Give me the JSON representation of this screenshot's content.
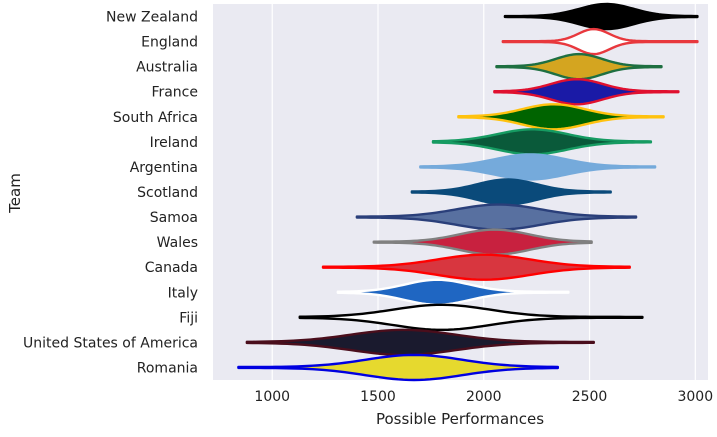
{
  "chart_data": {
    "type": "violin",
    "orientation": "horizontal",
    "xlabel": "Possible Performances",
    "ylabel": "Team",
    "xlim": [
      720,
      3060
    ],
    "xticks": [
      1000,
      1500,
      2000,
      2500,
      3000
    ],
    "grid": true,
    "background": "#eaeaf2",
    "teams": [
      {
        "name": "New Zealand",
        "fill": "#000000",
        "edge": "#000000",
        "min": 2100,
        "max": 3010,
        "median": 2580,
        "spread": 0.28
      },
      {
        "name": "England",
        "fill": "#ffffff",
        "edge": "#e8383d",
        "min": 2090,
        "max": 3010,
        "median": 2520,
        "spread": 0.16
      },
      {
        "name": "Australia",
        "fill": "#d4a520",
        "edge": "#1e6f41",
        "min": 2060,
        "max": 2840,
        "median": 2450,
        "spread": 0.28
      },
      {
        "name": "France",
        "fill": "#1a1aa6",
        "edge": "#e0102f",
        "min": 2050,
        "max": 2920,
        "median": 2440,
        "spread": 0.28
      },
      {
        "name": "South Africa",
        "fill": "#006400",
        "edge": "#ffc20e",
        "min": 1880,
        "max": 2850,
        "median": 2330,
        "spread": 0.3
      },
      {
        "name": "Ireland",
        "fill": "#0a5a3a",
        "edge": "#169b62",
        "min": 1760,
        "max": 2790,
        "median": 2230,
        "spread": 0.32
      },
      {
        "name": "Argentina",
        "fill": "#75aadb",
        "edge": "#75aadb",
        "min": 1700,
        "max": 2810,
        "median": 2220,
        "spread": 0.3
      },
      {
        "name": "Scotland",
        "fill": "#0a4a7a",
        "edge": "#0a4a7a",
        "min": 1660,
        "max": 2600,
        "median": 2110,
        "spread": 0.3
      },
      {
        "name": "Samoa",
        "fill": "#5870a0",
        "edge": "#2a3f7a",
        "min": 1400,
        "max": 2720,
        "median": 2070,
        "spread": 0.3
      },
      {
        "name": "Wales",
        "fill": "#c8213f",
        "edge": "#808080",
        "min": 1480,
        "max": 2510,
        "median": 2050,
        "spread": 0.32
      },
      {
        "name": "Canada",
        "fill": "#d8363f",
        "edge": "#ff0000",
        "min": 1240,
        "max": 2690,
        "median": 2000,
        "spread": 0.3
      },
      {
        "name": "Italy",
        "fill": "#1f66c2",
        "edge": "#ffffff",
        "min": 1310,
        "max": 2400,
        "median": 1780,
        "spread": 0.28
      },
      {
        "name": "Fiji",
        "fill": "#ffffff",
        "edge": "#000000",
        "min": 1130,
        "max": 2750,
        "median": 1800,
        "spread": 0.28
      },
      {
        "name": "United States of America",
        "fill": "#1a1a2e",
        "edge": "#4a0e1c",
        "min": 880,
        "max": 2520,
        "median": 1620,
        "spread": 0.3
      },
      {
        "name": "Romania",
        "fill": "#e6d92e",
        "edge": "#0000e0",
        "min": 840,
        "max": 2350,
        "median": 1670,
        "spread": 0.3
      }
    ]
  }
}
